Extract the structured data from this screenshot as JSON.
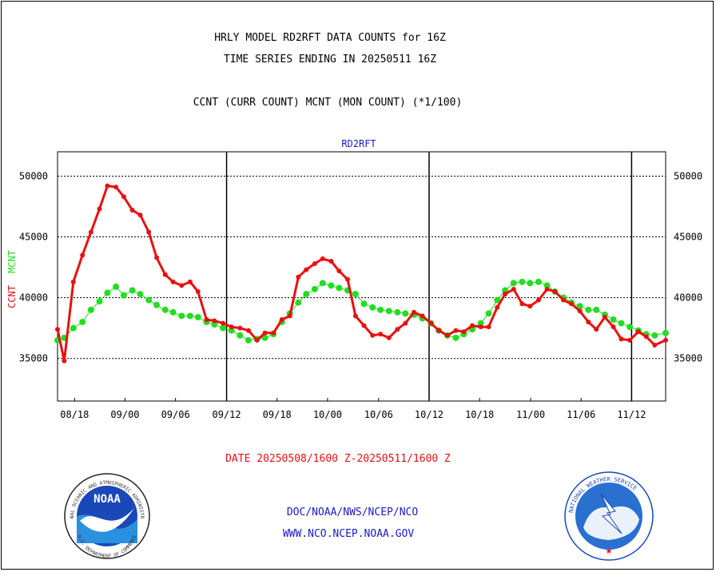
{
  "header": {
    "title_line1": "HRLY MODEL RD2RFT DATA COUNTS for 16Z",
    "title_line2": "TIME SERIES ENDING IN 20250511 16Z",
    "subtitle": "CCNT (CURR COUNT) MCNT (MON COUNT) (*1/100)"
  },
  "footer": {
    "date_range": "DATE 20250508/1600 Z-20250511/1600 Z",
    "link1": "DOC/NOAA/NWS/NCEP/NCO",
    "link2": "WWW.NCO.NCEP.NOAA.GOV",
    "noaa_logo_text": "NOAA",
    "noaa_ring_text": "NATIONAL OCEANIC AND ATMOSPHERIC ADMINISTRATION",
    "noaa_ring_text_bottom": "U.S. DEPARTMENT OF COMMERCE",
    "nws_ring_text": "NATIONAL WEATHER SERVICE"
  },
  "chart_data": {
    "type": "line",
    "title": "RD2RFT",
    "ylabel_ccnt": "CCNT",
    "ylabel_mcnt": "MCNT",
    "ylim": [
      31500,
      52000
    ],
    "xlim": [
      0,
      100
    ],
    "yticks": [
      35000,
      40000,
      45000,
      50000
    ],
    "xticks": [
      {
        "x": 2.8,
        "label": "08/18"
      },
      {
        "x": 11.1,
        "label": "09/00"
      },
      {
        "x": 19.4,
        "label": "09/06"
      },
      {
        "x": 27.8,
        "label": "09/12"
      },
      {
        "x": 36.1,
        "label": "09/18"
      },
      {
        "x": 44.4,
        "label": "10/00"
      },
      {
        "x": 52.8,
        "label": "10/06"
      },
      {
        "x": 61.1,
        "label": "10/12"
      },
      {
        "x": 69.4,
        "label": "10/18"
      },
      {
        "x": 77.8,
        "label": "11/00"
      },
      {
        "x": 86.1,
        "label": "11/06"
      },
      {
        "x": 94.4,
        "label": "11/12"
      }
    ],
    "day_lines": [
      27.8,
      61.1,
      94.4
    ],
    "grid": true,
    "colors": {
      "ccnt": "#e81010",
      "mcnt": "#22dd22",
      "title": "#1a1acc",
      "date": "#e81010",
      "links": "#1a1acc"
    },
    "series": [
      {
        "name": "CCNT",
        "values": [
          [
            0.0,
            37400
          ],
          [
            1.1,
            34800
          ],
          [
            2.6,
            41300
          ],
          [
            4.1,
            43500
          ],
          [
            5.5,
            45400
          ],
          [
            6.9,
            47300
          ],
          [
            8.2,
            49200
          ],
          [
            9.6,
            49100
          ],
          [
            10.9,
            48300
          ],
          [
            12.3,
            47200
          ],
          [
            13.6,
            46800
          ],
          [
            15.0,
            45400
          ],
          [
            16.3,
            43300
          ],
          [
            17.7,
            41900
          ],
          [
            19.0,
            41300
          ],
          [
            20.4,
            41000
          ],
          [
            21.8,
            41300
          ],
          [
            23.1,
            40500
          ],
          [
            24.5,
            38200
          ],
          [
            25.8,
            38100
          ],
          [
            27.2,
            37900
          ],
          [
            28.6,
            37600
          ],
          [
            30.0,
            37500
          ],
          [
            31.4,
            37300
          ],
          [
            32.8,
            36500
          ],
          [
            34.1,
            37100
          ],
          [
            35.5,
            37100
          ],
          [
            36.9,
            38200
          ],
          [
            38.2,
            38500
          ],
          [
            39.6,
            41700
          ],
          [
            40.9,
            42300
          ],
          [
            42.3,
            42800
          ],
          [
            43.6,
            43200
          ],
          [
            45.0,
            43000
          ],
          [
            46.3,
            42200
          ],
          [
            47.7,
            41500
          ],
          [
            49.0,
            38500
          ],
          [
            50.4,
            37700
          ],
          [
            51.8,
            36900
          ],
          [
            53.1,
            37000
          ],
          [
            54.5,
            36700
          ],
          [
            55.9,
            37400
          ],
          [
            57.2,
            37900
          ],
          [
            58.6,
            38800
          ],
          [
            60.0,
            38500
          ],
          [
            61.4,
            37900
          ],
          [
            62.7,
            37300
          ],
          [
            64.1,
            36900
          ],
          [
            65.5,
            37300
          ],
          [
            66.8,
            37200
          ],
          [
            68.2,
            37700
          ],
          [
            69.6,
            37600
          ],
          [
            70.9,
            37600
          ],
          [
            72.3,
            39200
          ],
          [
            73.6,
            40300
          ],
          [
            75.0,
            40700
          ],
          [
            76.4,
            39500
          ],
          [
            77.7,
            39300
          ],
          [
            79.1,
            39800
          ],
          [
            80.5,
            40700
          ],
          [
            81.8,
            40500
          ],
          [
            83.2,
            39800
          ],
          [
            84.5,
            39500
          ],
          [
            85.9,
            38900
          ],
          [
            87.3,
            38000
          ],
          [
            88.6,
            37400
          ],
          [
            90.0,
            38400
          ],
          [
            91.4,
            37600
          ],
          [
            92.7,
            36600
          ],
          [
            94.1,
            36500
          ],
          [
            95.5,
            37200
          ],
          [
            96.8,
            36800
          ],
          [
            98.2,
            36100
          ],
          [
            100.0,
            36500
          ]
        ]
      },
      {
        "name": "MCNT",
        "values": [
          [
            0.0,
            36500
          ],
          [
            1.1,
            36700
          ],
          [
            2.6,
            37500
          ],
          [
            4.1,
            38000
          ],
          [
            5.5,
            39000
          ],
          [
            6.9,
            39700
          ],
          [
            8.2,
            40400
          ],
          [
            9.6,
            40900
          ],
          [
            10.9,
            40200
          ],
          [
            12.3,
            40600
          ],
          [
            13.6,
            40300
          ],
          [
            15.0,
            39800
          ],
          [
            16.3,
            39400
          ],
          [
            17.7,
            39000
          ],
          [
            19.0,
            38800
          ],
          [
            20.4,
            38500
          ],
          [
            21.8,
            38500
          ],
          [
            23.1,
            38400
          ],
          [
            24.5,
            38000
          ],
          [
            25.8,
            37800
          ],
          [
            27.2,
            37500
          ],
          [
            28.6,
            37300
          ],
          [
            30.0,
            36900
          ],
          [
            31.4,
            36500
          ],
          [
            32.8,
            36600
          ],
          [
            34.1,
            36700
          ],
          [
            35.5,
            37000
          ],
          [
            36.9,
            38000
          ],
          [
            38.2,
            38700
          ],
          [
            39.6,
            39600
          ],
          [
            40.9,
            40300
          ],
          [
            42.3,
            40700
          ],
          [
            43.6,
            41200
          ],
          [
            45.0,
            41000
          ],
          [
            46.3,
            40800
          ],
          [
            47.7,
            40600
          ],
          [
            49.0,
            40300
          ],
          [
            50.4,
            39500
          ],
          [
            51.8,
            39200
          ],
          [
            53.1,
            39000
          ],
          [
            54.5,
            38900
          ],
          [
            55.9,
            38800
          ],
          [
            57.2,
            38700
          ],
          [
            58.6,
            38600
          ],
          [
            60.0,
            38300
          ],
          [
            61.4,
            37900
          ],
          [
            62.7,
            37300
          ],
          [
            64.1,
            36900
          ],
          [
            65.5,
            36700
          ],
          [
            66.8,
            37000
          ],
          [
            68.2,
            37400
          ],
          [
            69.6,
            37900
          ],
          [
            70.9,
            38700
          ],
          [
            72.3,
            39800
          ],
          [
            73.6,
            40600
          ],
          [
            75.0,
            41200
          ],
          [
            76.4,
            41300
          ],
          [
            77.7,
            41200
          ],
          [
            79.1,
            41300
          ],
          [
            80.5,
            41000
          ],
          [
            81.8,
            40500
          ],
          [
            83.2,
            40000
          ],
          [
            84.5,
            39600
          ],
          [
            85.9,
            39300
          ],
          [
            87.3,
            39000
          ],
          [
            88.6,
            39000
          ],
          [
            90.0,
            38600
          ],
          [
            91.4,
            38200
          ],
          [
            92.7,
            37900
          ],
          [
            94.1,
            37600
          ],
          [
            95.5,
            37300
          ],
          [
            96.8,
            37000
          ],
          [
            98.2,
            36900
          ],
          [
            100.0,
            37100
          ]
        ]
      }
    ]
  }
}
